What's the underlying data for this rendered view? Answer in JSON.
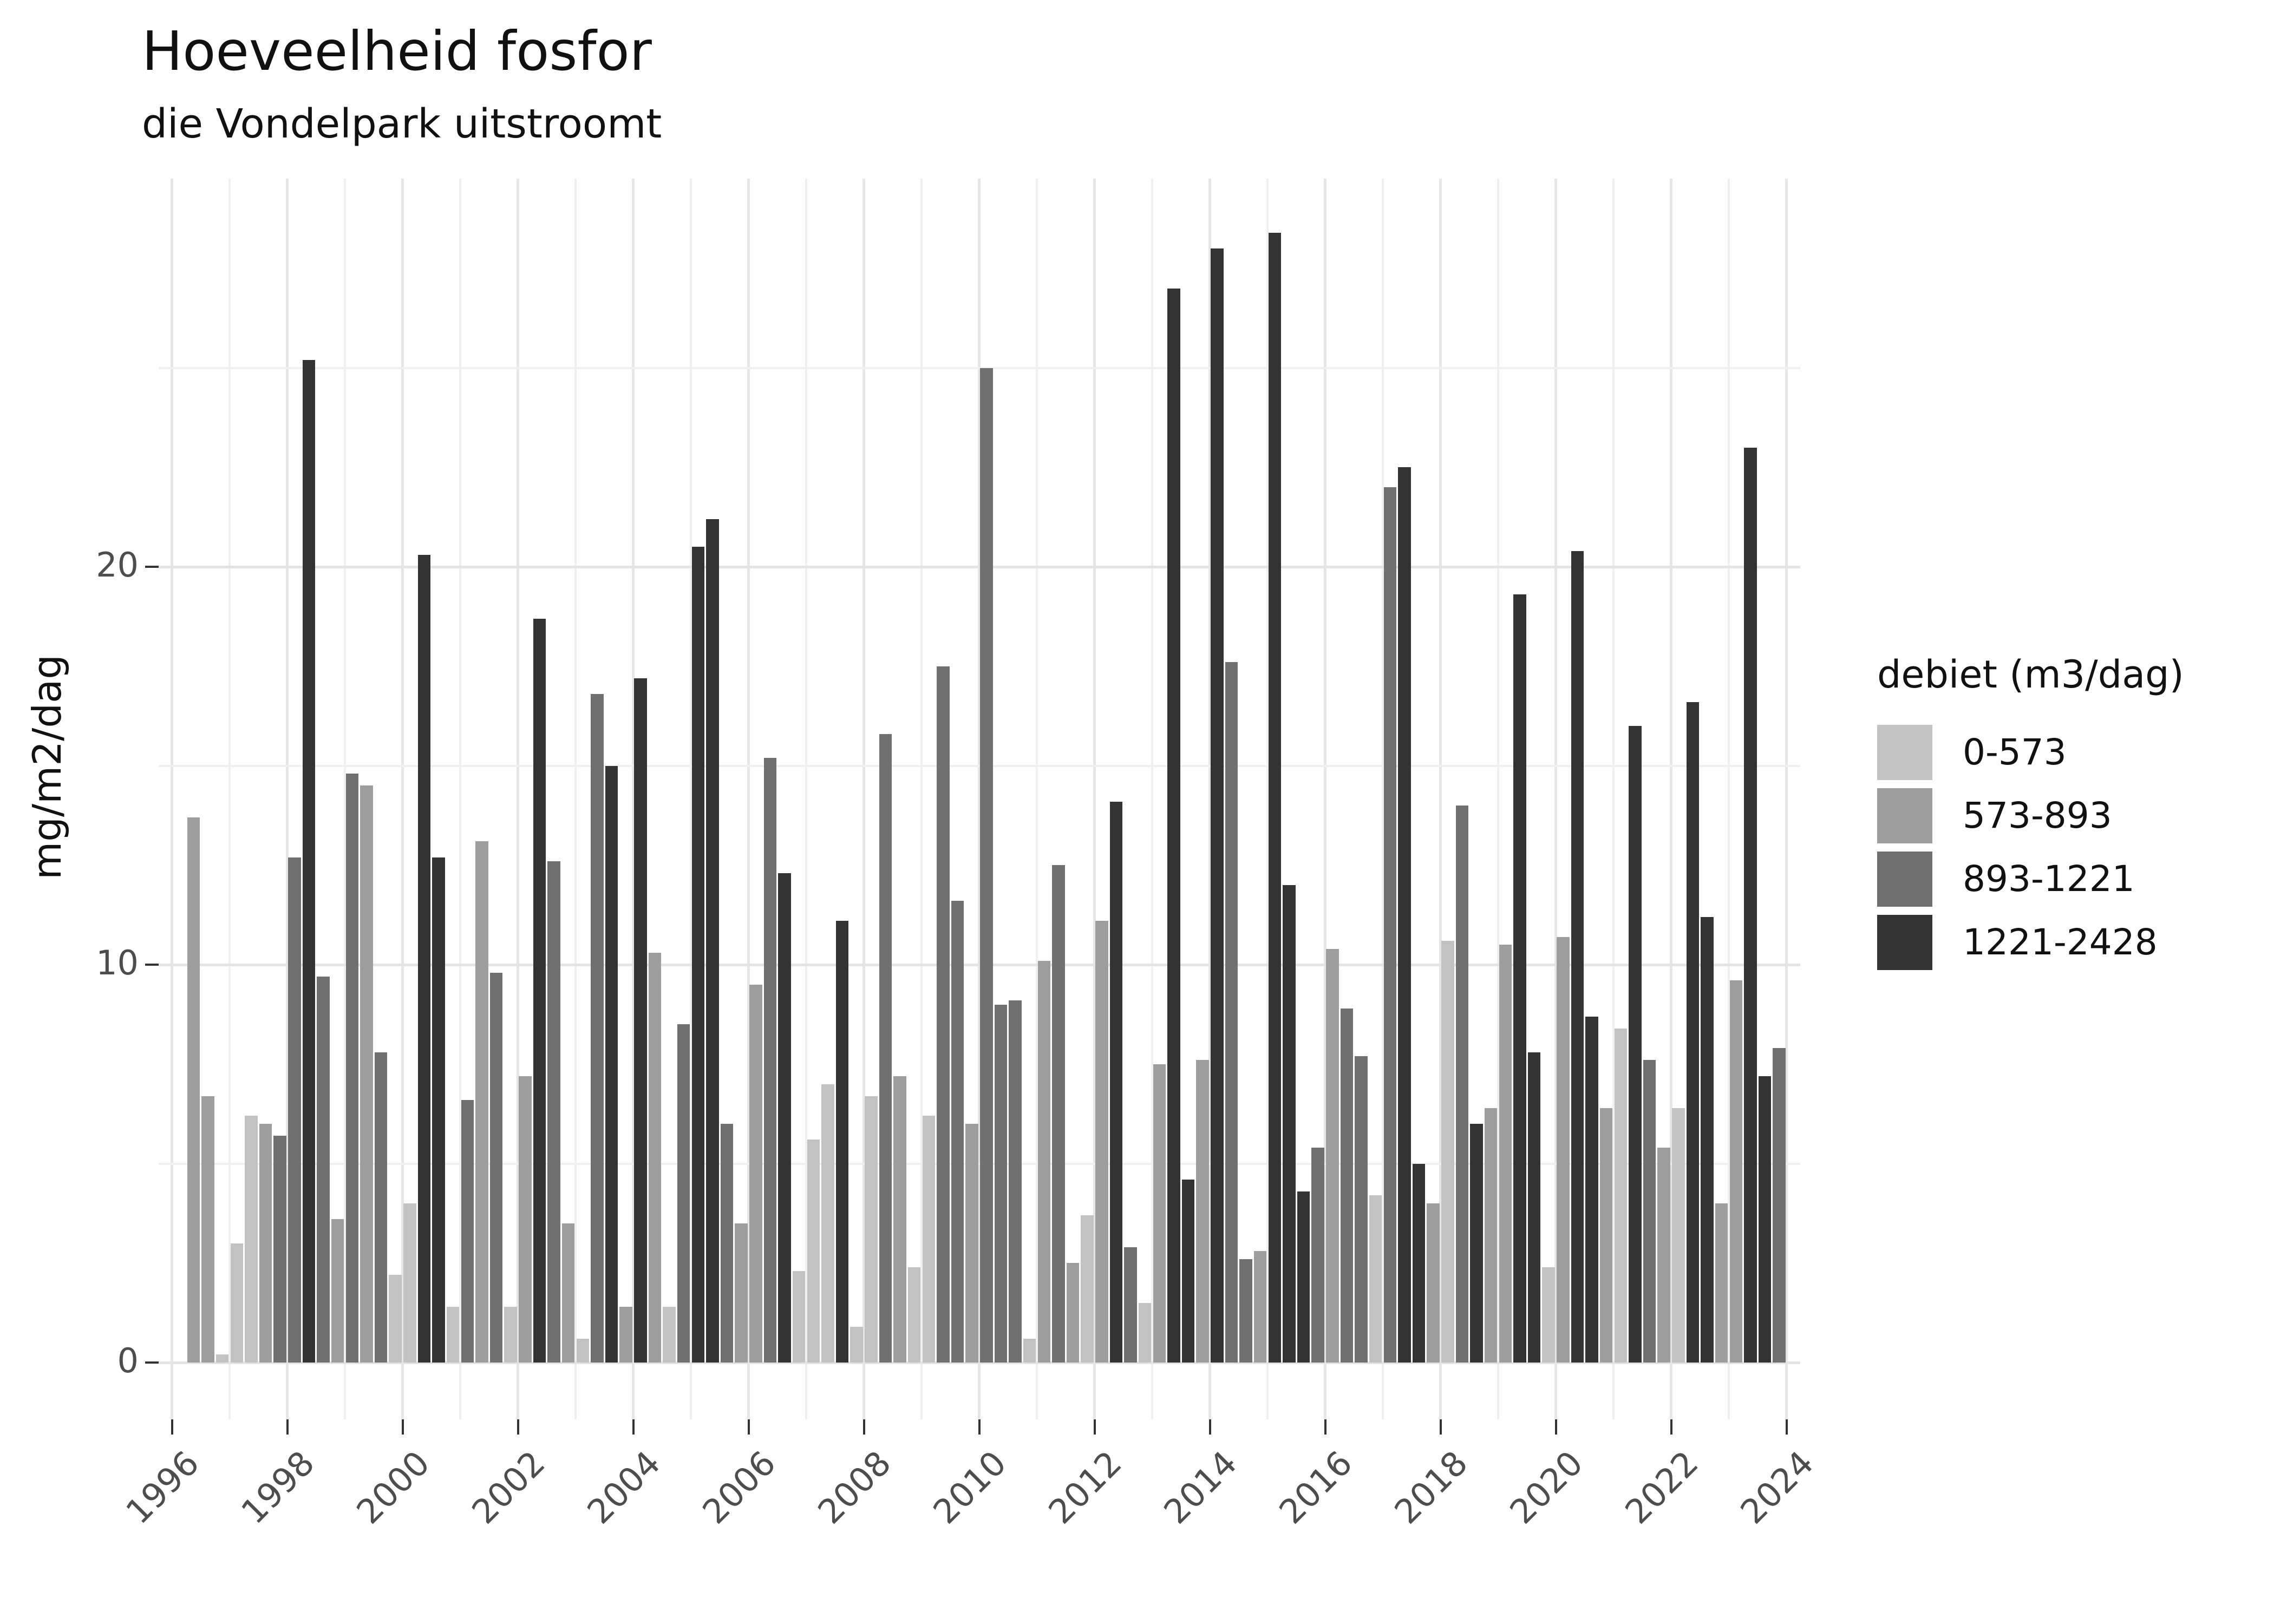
{
  "chart_data": {
    "type": "bar",
    "title": "Hoeveelheid fosfor",
    "subtitle": "die Vondelpark uitstroomt",
    "ylabel": "mg/m2/dag",
    "xlabel": "",
    "ylim": [
      0,
      29.3
    ],
    "grid": true,
    "y_major_ticks": [
      0,
      10,
      20
    ],
    "y_minor_gridlines": [
      5,
      15,
      25
    ],
    "y_tick_labels": [
      "0",
      "10",
      "20"
    ],
    "x_tick_labels": [
      "1996",
      "1998",
      "2000",
      "2002",
      "2004",
      "2006",
      "2008",
      "2010",
      "2012",
      "2014",
      "2016",
      "2018",
      "2020",
      "2022",
      "2024"
    ],
    "x_year_range": [
      1996,
      2024
    ],
    "legend_position": "right",
    "legend_title": "debiet (m3/dag)",
    "legend_categories": [
      {
        "label": "0-573",
        "color": "#c2c2c2"
      },
      {
        "label": "573-893",
        "color": "#9d9d9d"
      },
      {
        "label": "893-1221",
        "color": "#707070"
      },
      {
        "label": "1221-2428",
        "color": "#333333"
      }
    ],
    "bars_columns": [
      "year",
      "quarter",
      "value_mg_m2_dag",
      "debiet_m3_dag"
    ],
    "bars": [
      [
        1996,
        2,
        13.7,
        "573-893"
      ],
      [
        1996,
        3,
        6.7,
        "573-893"
      ],
      [
        1996,
        4,
        0.2,
        "0-573"
      ],
      [
        1997,
        1,
        3.0,
        "0-573"
      ],
      [
        1997,
        2,
        6.2,
        "0-573"
      ],
      [
        1997,
        3,
        6.0,
        "573-893"
      ],
      [
        1997,
        4,
        5.7,
        "893-1221"
      ],
      [
        1998,
        1,
        12.7,
        "893-1221"
      ],
      [
        1998,
        2,
        25.2,
        "1221-2428"
      ],
      [
        1998,
        3,
        9.7,
        "893-1221"
      ],
      [
        1998,
        4,
        3.6,
        "573-893"
      ],
      [
        1999,
        1,
        14.8,
        "893-1221"
      ],
      [
        1999,
        2,
        14.5,
        "573-893"
      ],
      [
        1999,
        3,
        7.8,
        "893-1221"
      ],
      [
        1999,
        4,
        2.2,
        "0-573"
      ],
      [
        2000,
        1,
        4.0,
        "0-573"
      ],
      [
        2000,
        2,
        20.3,
        "1221-2428"
      ],
      [
        2000,
        3,
        12.7,
        "1221-2428"
      ],
      [
        2000,
        4,
        1.4,
        "0-573"
      ],
      [
        2001,
        1,
        6.6,
        "893-1221"
      ],
      [
        2001,
        2,
        13.1,
        "573-893"
      ],
      [
        2001,
        3,
        9.8,
        "893-1221"
      ],
      [
        2001,
        4,
        1.4,
        "0-573"
      ],
      [
        2002,
        1,
        7.2,
        "573-893"
      ],
      [
        2002,
        2,
        18.7,
        "1221-2428"
      ],
      [
        2002,
        3,
        12.6,
        "893-1221"
      ],
      [
        2002,
        4,
        3.5,
        "573-893"
      ],
      [
        2003,
        1,
        0.6,
        "0-573"
      ],
      [
        2003,
        2,
        16.8,
        "893-1221"
      ],
      [
        2003,
        3,
        15.0,
        "1221-2428"
      ],
      [
        2003,
        4,
        1.4,
        "573-893"
      ],
      [
        2004,
        1,
        17.2,
        "1221-2428"
      ],
      [
        2004,
        2,
        10.3,
        "573-893"
      ],
      [
        2004,
        3,
        1.4,
        "0-573"
      ],
      [
        2004,
        4,
        8.5,
        "893-1221"
      ],
      [
        2005,
        1,
        20.5,
        "1221-2428"
      ],
      [
        2005,
        2,
        21.2,
        "1221-2428"
      ],
      [
        2005,
        3,
        6.0,
        "893-1221"
      ],
      [
        2005,
        4,
        3.5,
        "573-893"
      ],
      [
        2006,
        1,
        9.5,
        "573-893"
      ],
      [
        2006,
        2,
        15.2,
        "893-1221"
      ],
      [
        2006,
        3,
        12.3,
        "1221-2428"
      ],
      [
        2006,
        4,
        2.3,
        "0-573"
      ],
      [
        2007,
        1,
        5.6,
        "0-573"
      ],
      [
        2007,
        2,
        7.0,
        "0-573"
      ],
      [
        2007,
        3,
        11.1,
        "1221-2428"
      ],
      [
        2007,
        4,
        0.9,
        "0-573"
      ],
      [
        2008,
        1,
        6.7,
        "0-573"
      ],
      [
        2008,
        2,
        15.8,
        "893-1221"
      ],
      [
        2008,
        3,
        7.2,
        "573-893"
      ],
      [
        2008,
        4,
        2.4,
        "0-573"
      ],
      [
        2009,
        1,
        6.2,
        "0-573"
      ],
      [
        2009,
        2,
        17.5,
        "893-1221"
      ],
      [
        2009,
        3,
        11.6,
        "893-1221"
      ],
      [
        2009,
        4,
        6.0,
        "573-893"
      ],
      [
        2010,
        1,
        25.0,
        "893-1221"
      ],
      [
        2010,
        2,
        9.0,
        "893-1221"
      ],
      [
        2010,
        3,
        9.1,
        "893-1221"
      ],
      [
        2010,
        4,
        0.6,
        "0-573"
      ],
      [
        2011,
        1,
        10.1,
        "573-893"
      ],
      [
        2011,
        2,
        12.5,
        "893-1221"
      ],
      [
        2011,
        3,
        2.5,
        "573-893"
      ],
      [
        2011,
        4,
        3.7,
        "0-573"
      ],
      [
        2012,
        1,
        11.1,
        "573-893"
      ],
      [
        2012,
        2,
        14.1,
        "1221-2428"
      ],
      [
        2012,
        3,
        2.9,
        "893-1221"
      ],
      [
        2012,
        4,
        1.5,
        "0-573"
      ],
      [
        2013,
        1,
        7.5,
        "573-893"
      ],
      [
        2013,
        2,
        27.0,
        "1221-2428"
      ],
      [
        2013,
        3,
        4.6,
        "1221-2428"
      ],
      [
        2013,
        4,
        7.6,
        "573-893"
      ],
      [
        2014,
        1,
        28.0,
        "1221-2428"
      ],
      [
        2014,
        2,
        17.6,
        "893-1221"
      ],
      [
        2014,
        3,
        2.6,
        "893-1221"
      ],
      [
        2014,
        4,
        2.8,
        "573-893"
      ],
      [
        2015,
        1,
        28.4,
        "1221-2428"
      ],
      [
        2015,
        2,
        12.0,
        "1221-2428"
      ],
      [
        2015,
        3,
        4.3,
        "1221-2428"
      ],
      [
        2015,
        4,
        5.4,
        "893-1221"
      ],
      [
        2016,
        1,
        10.4,
        "573-893"
      ],
      [
        2016,
        2,
        8.9,
        "893-1221"
      ],
      [
        2016,
        3,
        7.7,
        "893-1221"
      ],
      [
        2016,
        4,
        4.2,
        "0-573"
      ],
      [
        2017,
        1,
        22.0,
        "893-1221"
      ],
      [
        2017,
        2,
        22.5,
        "1221-2428"
      ],
      [
        2017,
        3,
        5.0,
        "1221-2428"
      ],
      [
        2017,
        4,
        4.0,
        "573-893"
      ],
      [
        2018,
        1,
        10.6,
        "0-573"
      ],
      [
        2018,
        2,
        14.0,
        "893-1221"
      ],
      [
        2018,
        3,
        6.0,
        "1221-2428"
      ],
      [
        2018,
        4,
        6.4,
        "573-893"
      ],
      [
        2019,
        1,
        10.5,
        "573-893"
      ],
      [
        2019,
        2,
        19.3,
        "1221-2428"
      ],
      [
        2019,
        3,
        7.8,
        "1221-2428"
      ],
      [
        2019,
        4,
        2.4,
        "0-573"
      ],
      [
        2020,
        1,
        10.7,
        "573-893"
      ],
      [
        2020,
        2,
        20.4,
        "1221-2428"
      ],
      [
        2020,
        3,
        8.7,
        "1221-2428"
      ],
      [
        2020,
        4,
        6.4,
        "573-893"
      ],
      [
        2021,
        1,
        8.4,
        "0-573"
      ],
      [
        2021,
        2,
        16.0,
        "1221-2428"
      ],
      [
        2021,
        3,
        7.6,
        "893-1221"
      ],
      [
        2021,
        4,
        5.4,
        "573-893"
      ],
      [
        2022,
        1,
        6.4,
        "0-573"
      ],
      [
        2022,
        2,
        16.6,
        "1221-2428"
      ],
      [
        2022,
        3,
        11.2,
        "1221-2428"
      ],
      [
        2022,
        4,
        4.0,
        "573-893"
      ],
      [
        2023,
        1,
        9.6,
        "573-893"
      ],
      [
        2023,
        2,
        23.0,
        "1221-2428"
      ],
      [
        2023,
        3,
        7.2,
        "1221-2428"
      ],
      [
        2023,
        4,
        7.9,
        "893-1221"
      ]
    ]
  }
}
